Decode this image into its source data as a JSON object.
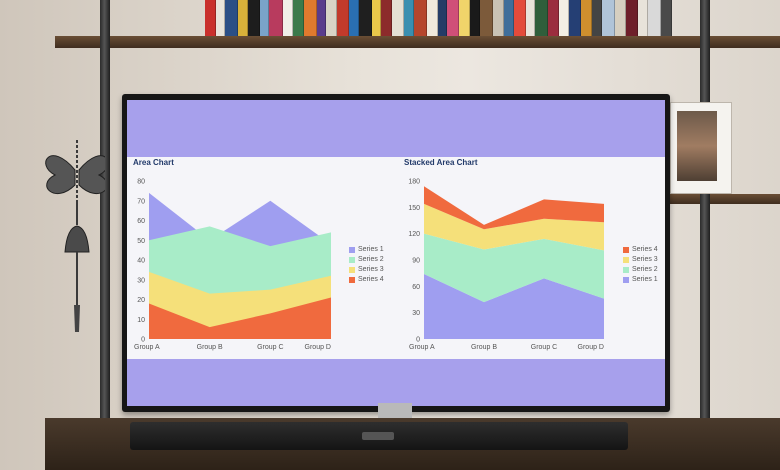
{
  "colors": {
    "series_1": "#9f9ef0",
    "series_2": "#a8ecc8",
    "series_3": "#f5e07a",
    "series_4": "#f06a3e",
    "screen_band": "#a7a0ec"
  },
  "icons": [
    "butterfly-icon",
    "bell-icon"
  ],
  "chart_data": [
    {
      "type": "area",
      "title": "Area Chart",
      "categories": [
        "Group A",
        "Group B",
        "Group C",
        "Group D"
      ],
      "ylim": [
        0,
        80
      ],
      "yticks": [
        "0",
        "10",
        "20",
        "30",
        "40",
        "50",
        "60",
        "70",
        "80"
      ],
      "series": [
        {
          "name": "Series 1",
          "values": [
            74,
            50,
            70,
            48
          ]
        },
        {
          "name": "Series 2",
          "values": [
            50,
            57,
            47,
            54
          ]
        },
        {
          "name": "Series 3",
          "values": [
            34,
            23,
            25,
            32
          ]
        },
        {
          "name": "Series 4",
          "values": [
            18,
            6,
            13,
            21
          ]
        }
      ],
      "legend_placement": "right"
    },
    {
      "type": "area",
      "stacked": true,
      "title": "Stacked Area Chart",
      "categories": [
        "Group A",
        "Group B",
        "Group C",
        "Group D"
      ],
      "ylim": [
        0,
        180
      ],
      "yticks": [
        "0",
        "30",
        "60",
        "90",
        "120",
        "150",
        "180"
      ],
      "series": [
        {
          "name": "Series 1",
          "values": [
            74,
            42,
            69,
            46
          ]
        },
        {
          "name": "Series 2",
          "values": [
            46,
            60,
            45,
            55
          ]
        },
        {
          "name": "Series 3",
          "values": [
            34,
            23,
            23,
            32
          ]
        },
        {
          "name": "Series 4",
          "values": [
            20,
            5,
            22,
            21
          ]
        }
      ],
      "legend_placement": "right",
      "legend_order": [
        "Series 4",
        "Series 3",
        "Series 2",
        "Series 1"
      ]
    }
  ]
}
